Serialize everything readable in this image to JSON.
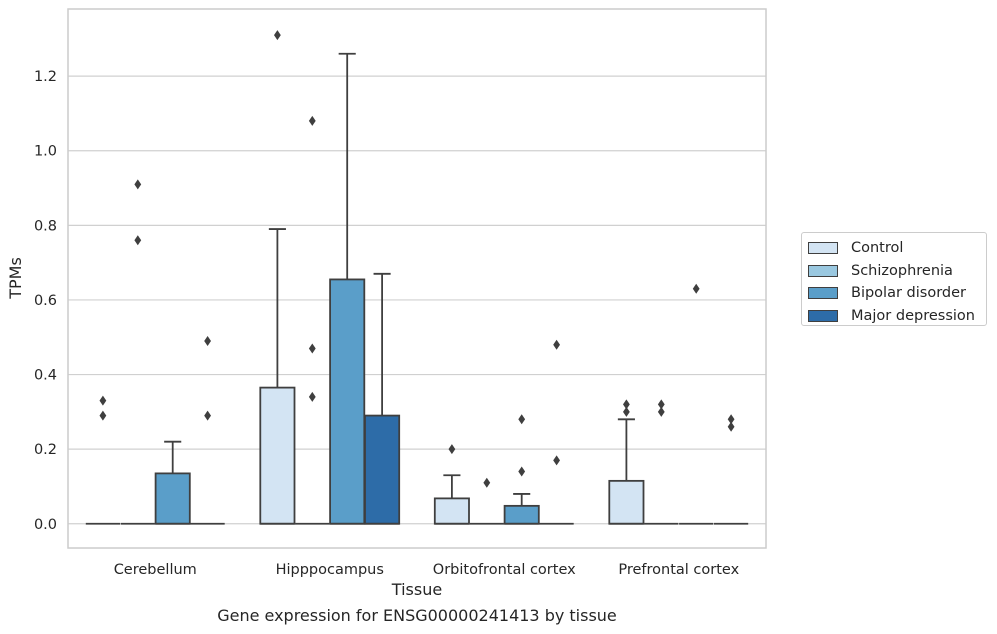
{
  "caption": "Gene expression for ENSG00000241413 by tissue",
  "chart_data": {
    "type": "box",
    "xlabel": "Tissue",
    "ylabel": "TPMs",
    "ylim": [
      -0.065,
      1.38
    ],
    "yticks": [
      0.0,
      0.2,
      0.4,
      0.6,
      0.8,
      1.0,
      1.2
    ],
    "ytick_labels": [
      "0.0",
      "0.2",
      "0.4",
      "0.6",
      "0.8",
      "1.0",
      "1.2"
    ],
    "grid": "horizontal",
    "legend_position": "right",
    "categories": [
      "Cerebellum",
      "Hipppocampus",
      "Orbitofrontal cortex",
      "Prefrontal cortex"
    ],
    "series": [
      {
        "name": "Control",
        "color": "#d3e4f3",
        "boxes": [
          {
            "q1": 0.0,
            "median": 0.0,
            "q3": 0.0,
            "whisker_low": 0.0,
            "whisker_high": 0.0,
            "outliers": [
              0.33,
              0.29
            ]
          },
          {
            "q1": 0.0,
            "median": 0.0,
            "q3": 0.365,
            "whisker_low": 0.0,
            "whisker_high": 0.79,
            "outliers": [
              1.31
            ]
          },
          {
            "q1": 0.0,
            "median": 0.0,
            "q3": 0.068,
            "whisker_low": 0.0,
            "whisker_high": 0.13,
            "outliers": [
              0.2
            ]
          },
          {
            "q1": 0.0,
            "median": 0.0,
            "q3": 0.115,
            "whisker_low": 0.0,
            "whisker_high": 0.28,
            "outliers": [
              0.32,
              0.3
            ]
          }
        ]
      },
      {
        "name": "Schizophrenia",
        "color": "#9ac8e0",
        "boxes": [
          {
            "q1": 0.0,
            "median": 0.0,
            "q3": 0.0,
            "whisker_low": 0.0,
            "whisker_high": 0.0,
            "outliers": [
              0.91,
              0.76
            ]
          },
          {
            "q1": 0.0,
            "median": 0.0,
            "q3": 0.0,
            "whisker_low": 0.0,
            "whisker_high": 0.0,
            "outliers": [
              1.08,
              0.47,
              0.34
            ]
          },
          {
            "q1": 0.0,
            "median": 0.0,
            "q3": 0.0,
            "whisker_low": 0.0,
            "whisker_high": 0.0,
            "outliers": [
              0.11
            ]
          },
          {
            "q1": 0.0,
            "median": 0.0,
            "q3": 0.0,
            "whisker_low": 0.0,
            "whisker_high": 0.0,
            "outliers": [
              0.32,
              0.3
            ]
          }
        ]
      },
      {
        "name": "Bipolar disorder",
        "color": "#5a9ec9",
        "boxes": [
          {
            "q1": 0.0,
            "median": 0.0,
            "q3": 0.135,
            "whisker_low": 0.0,
            "whisker_high": 0.22,
            "outliers": []
          },
          {
            "q1": 0.0,
            "median": 0.0,
            "q3": 0.655,
            "whisker_low": 0.0,
            "whisker_high": 1.26,
            "outliers": []
          },
          {
            "q1": 0.0,
            "median": 0.0,
            "q3": 0.048,
            "whisker_low": 0.0,
            "whisker_high": 0.08,
            "outliers": [
              0.28,
              0.14
            ]
          },
          {
            "q1": 0.0,
            "median": 0.0,
            "q3": 0.0,
            "whisker_low": 0.0,
            "whisker_high": 0.0,
            "outliers": [
              0.63
            ]
          }
        ]
      },
      {
        "name": "Major depression",
        "color": "#2d6ca8",
        "boxes": [
          {
            "q1": 0.0,
            "median": 0.0,
            "q3": 0.0,
            "whisker_low": 0.0,
            "whisker_high": 0.0,
            "outliers": [
              0.49,
              0.29
            ]
          },
          {
            "q1": 0.0,
            "median": 0.0,
            "q3": 0.29,
            "whisker_low": 0.0,
            "whisker_high": 0.67,
            "outliers": []
          },
          {
            "q1": 0.0,
            "median": 0.0,
            "q3": 0.0,
            "whisker_low": 0.0,
            "whisker_high": 0.0,
            "outliers": [
              0.48,
              0.17
            ]
          },
          {
            "q1": 0.0,
            "median": 0.0,
            "q3": 0.0,
            "whisker_low": 0.0,
            "whisker_high": 0.0,
            "outliers": [
              0.28,
              0.26
            ]
          }
        ]
      }
    ]
  }
}
